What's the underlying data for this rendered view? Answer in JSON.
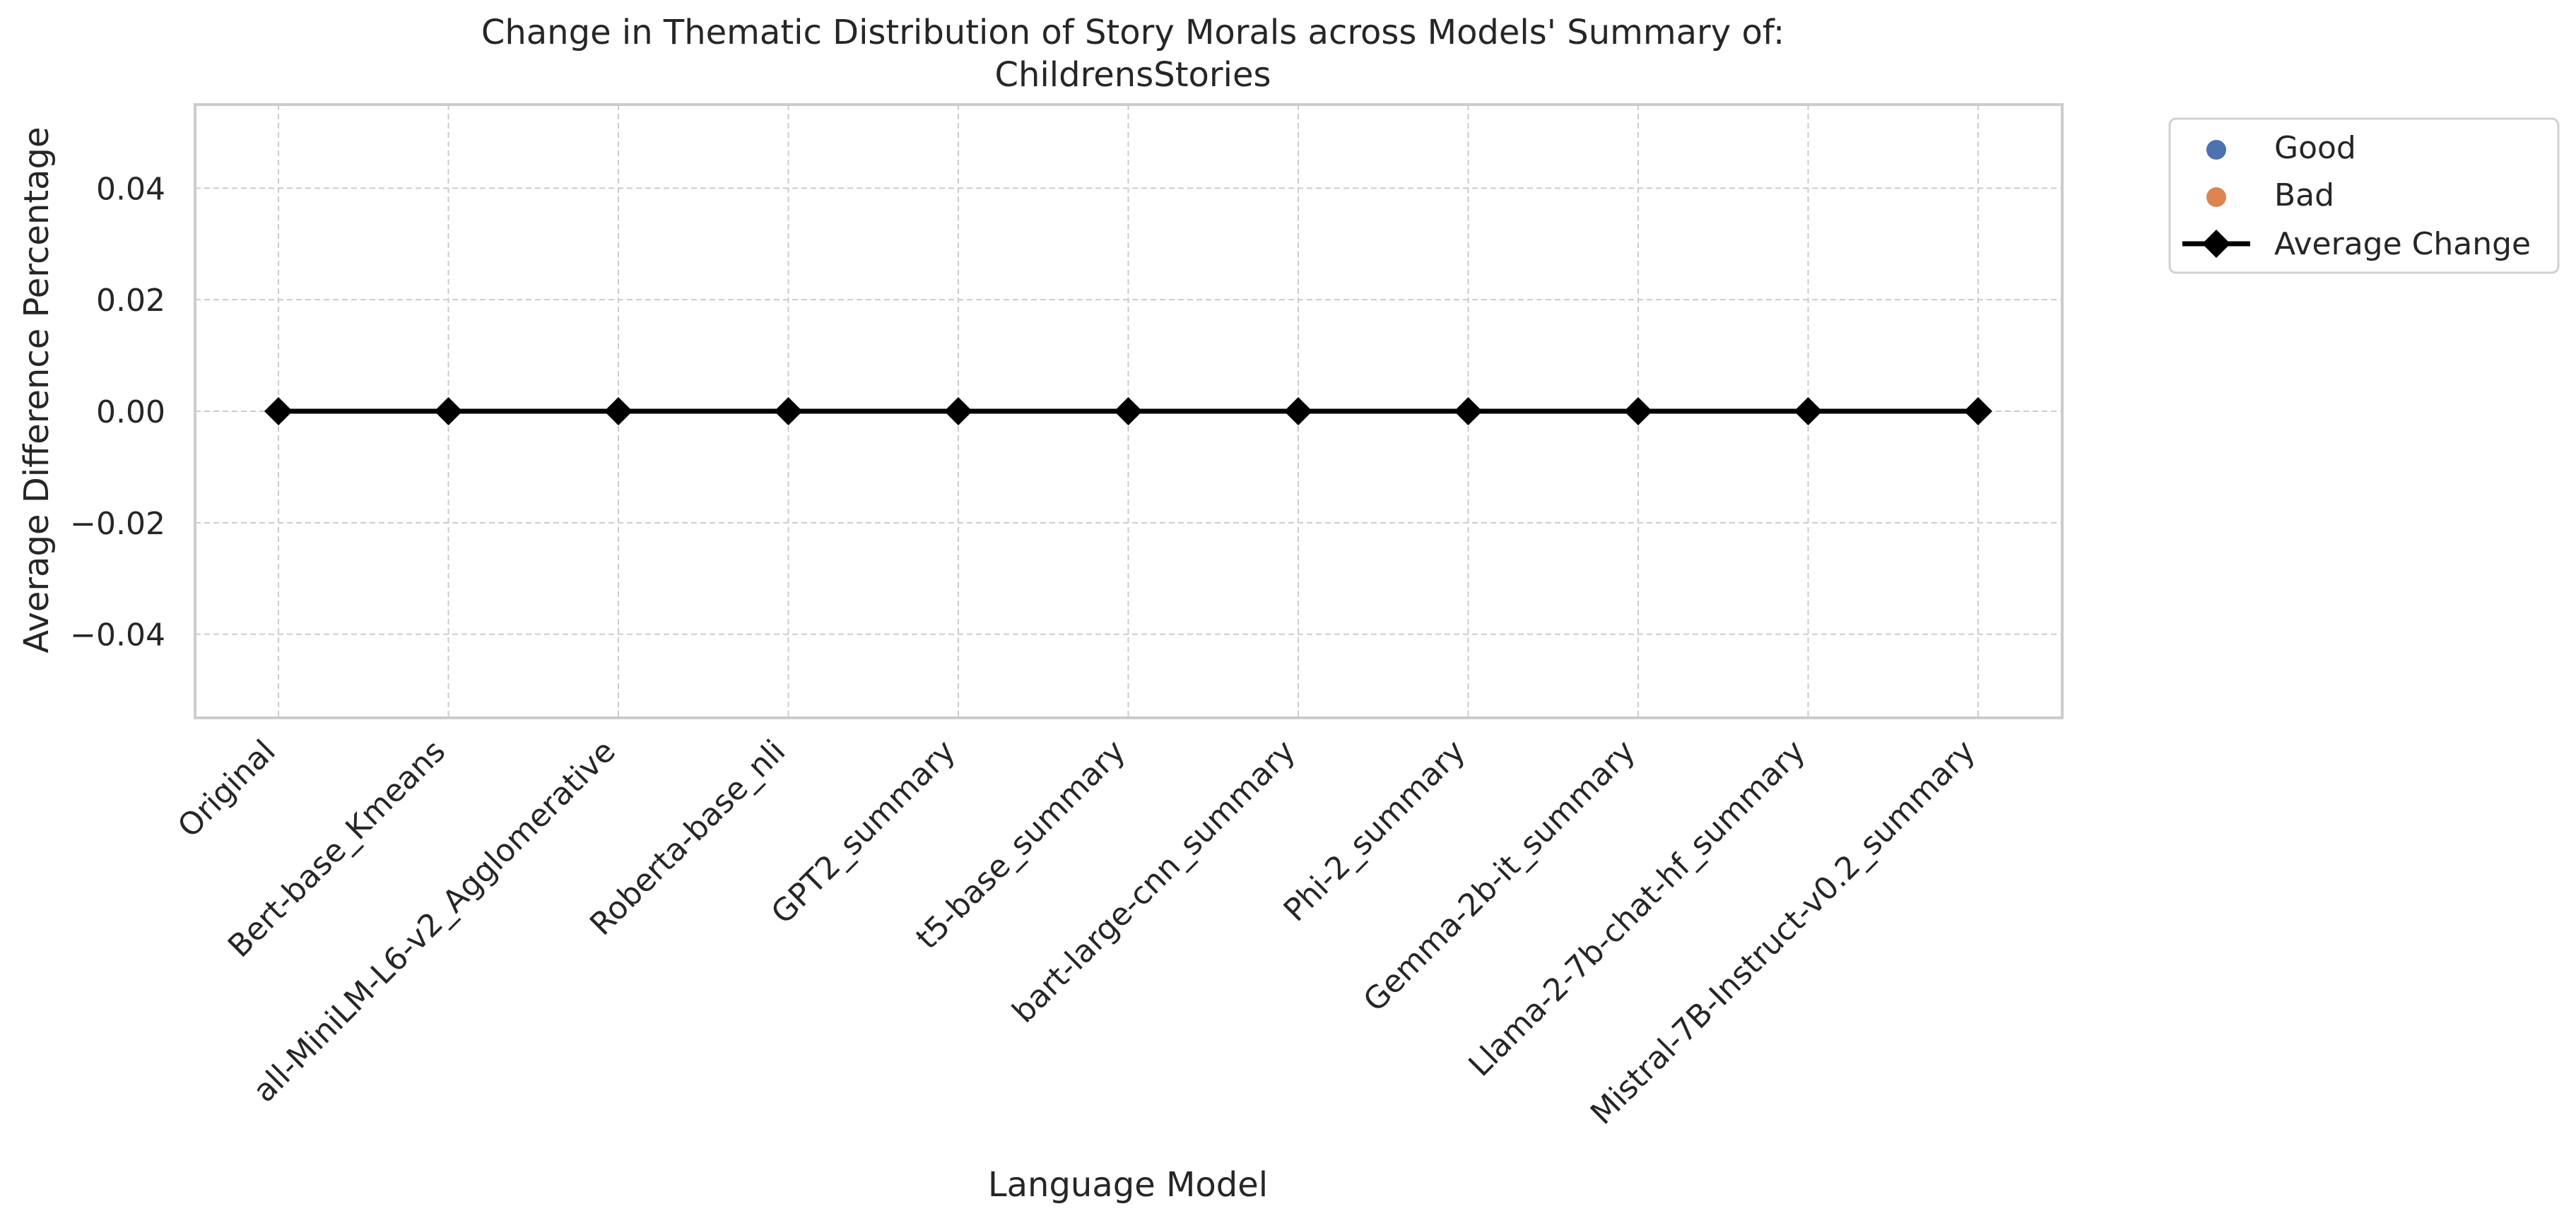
{
  "chart_data": {
    "type": "line",
    "title": "Change in Thematic Distribution of Story Morals across Models' Summary of:",
    "subtitle": "ChildrensStories",
    "xlabel": "Language Model",
    "ylabel": "Average Difference Percentage",
    "categories": [
      "Original",
      "Bert-base_Kmeans",
      "all-MiniLM-L6-v2_Agglomerative",
      "Roberta-base_nli",
      "GPT2_summary",
      "t5-base_summary",
      "bart-large-cnn_summary",
      "Phi-2_summary",
      "Gemma-2b-it_summary",
      "Llama-2-7b-chat-hf_summary",
      "Mistral-7B-Instruct-v0.2_summary"
    ],
    "yticks": [
      "0.04",
      "0.02",
      "0.00",
      "−0.02",
      "−0.04"
    ],
    "ytick_values": [
      0.04,
      0.02,
      0.0,
      -0.02,
      -0.04
    ],
    "ylim": [
      -0.055,
      0.055
    ],
    "grid": true,
    "legend_position": "outside top-right",
    "series": [
      {
        "name": "Good",
        "kind": "scatter",
        "color": "#4c72b0",
        "values": []
      },
      {
        "name": "Bad",
        "kind": "scatter",
        "color": "#dd8452",
        "values": []
      },
      {
        "name": "Average Change",
        "kind": "line",
        "marker": "diamond",
        "color": "#000000",
        "values": [
          0,
          0,
          0,
          0,
          0,
          0,
          0,
          0,
          0,
          0,
          0
        ]
      }
    ]
  }
}
